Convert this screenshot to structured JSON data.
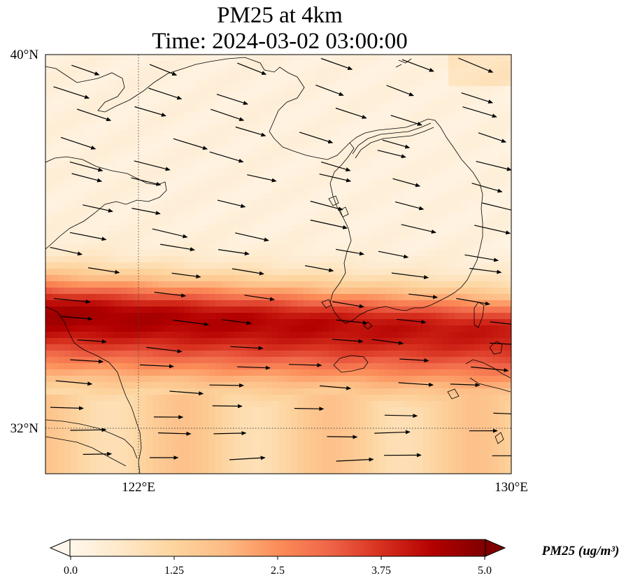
{
  "title": "PM25 at 4km",
  "subtitle": "Time: 2024-03-02 03:00:00",
  "axes": {
    "lat_ticks": [
      "40°N",
      "32°N"
    ],
    "lon_ticks": [
      "122°E",
      "130°E"
    ],
    "lon_range": [
      120,
      130
    ],
    "lat_range": [
      31,
      40
    ],
    "gridlines": "dotted"
  },
  "colorbar": {
    "label": "PM25 (ug/m³)",
    "ticks": [
      "0.0",
      "1.25",
      "2.5",
      "3.75",
      "5.0"
    ],
    "range": [
      0,
      5
    ],
    "extend": "both",
    "colormap": "OrRd",
    "colors": [
      "#fff7ec",
      "#fee8c8",
      "#fdd49e",
      "#fdbb84",
      "#fc8d59",
      "#ef6548",
      "#d7301f",
      "#b30000",
      "#7f0000"
    ]
  },
  "plume": {
    "description_free": true,
    "peak_value": 4.6,
    "orientation": "west-east band near 33.5°N",
    "background_value": 0.3
  },
  "wind_vectors": {
    "direction": "mostly eastward",
    "shown": true
  }
}
